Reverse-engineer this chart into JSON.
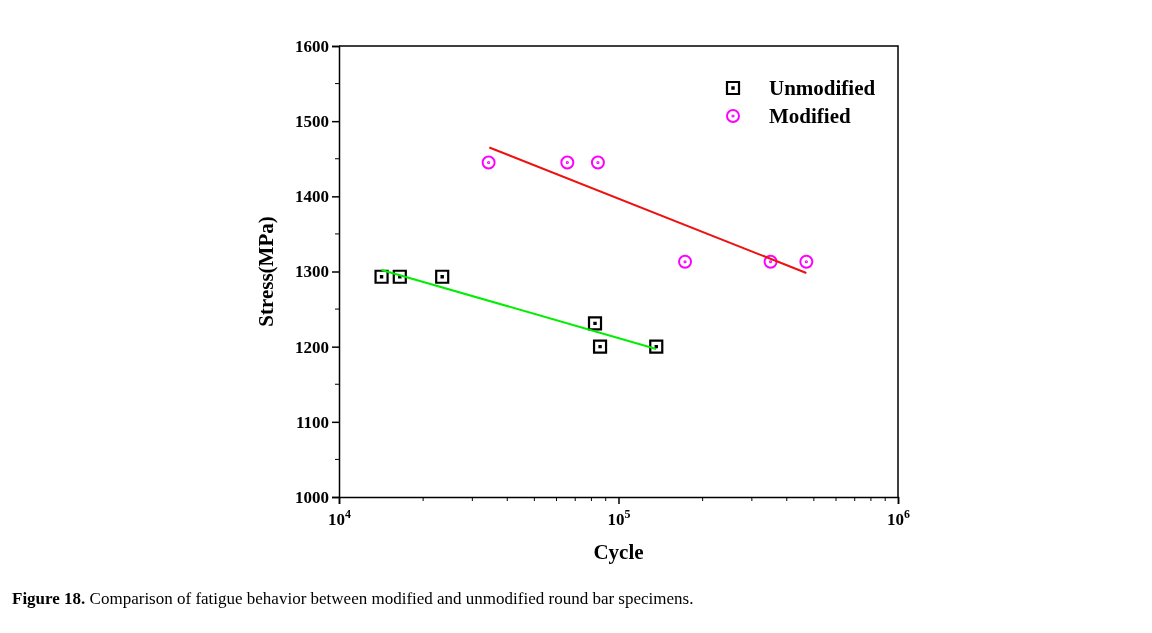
{
  "chart_data": {
    "type": "scatter",
    "xlabel": "Cycle",
    "ylabel": "Stress(MPa)",
    "log": "x",
    "xlim": [
      10000,
      1000000
    ],
    "xticks": [
      {
        "value": 10000,
        "label": "10$^{4}$"
      },
      {
        "value": 100000,
        "label": "10$^{5}$"
      },
      {
        "value": 1000000,
        "label": "10$^{6}$"
      }
    ],
    "ylim": [
      1000,
      1600
    ],
    "yticks": [
      1000,
      1100,
      1200,
      1300,
      1400,
      1500,
      1600
    ],
    "grid": false,
    "legend": "top right",
    "series": [
      {
        "name": "Unmodified",
        "marker": "square",
        "color": "#000000",
        "x": [
          14200,
          16500,
          23400,
          82400,
          85900,
          136500
        ],
        "values": [
          1293,
          1293,
          1293,
          1231,
          1200,
          1200
        ]
      },
      {
        "name": "Modified",
        "marker": "circle",
        "color": "#ff00ff",
        "x": [
          34300,
          65600,
          84400,
          173000,
          350000,
          470000
        ],
        "values": [
          1445,
          1445,
          1445,
          1313,
          1313,
          1313
        ]
      },
      {
        "type": "line",
        "marker": "none",
        "color": "#00ee00",
        "x": [
          14200,
          136500
        ],
        "values": [
          1302,
          1197
        ]
      },
      {
        "type": "line",
        "marker": "none",
        "color": "#ee1111",
        "x": [
          34500,
          470000
        ],
        "values": [
          1465,
          1298
        ]
      }
    ],
    "annotations": [
      "Figure 18. Comparison of fatigue behavior between modified and unmodified round bar specimens."
    ]
  }
}
